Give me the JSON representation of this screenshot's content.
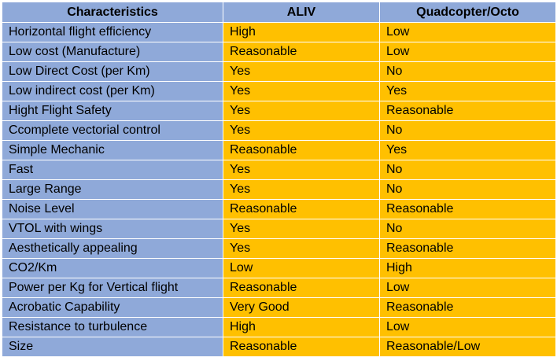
{
  "table": {
    "headers": [
      "Characteristics",
      "ALIV",
      "Quadcopter/Octo"
    ],
    "rows": [
      [
        "Horizontal flight efficiency",
        "High",
        "Low"
      ],
      [
        "Low cost (Manufacture)",
        "Reasonable",
        "Low"
      ],
      [
        "Low Direct Cost (per Km)",
        "Yes",
        "No"
      ],
      [
        "Low indirect cost (per Km)",
        "Yes",
        "Yes"
      ],
      [
        "Hight Flight Safety",
        "Yes",
        "Reasonable"
      ],
      [
        "Ccomplete vectorial control",
        "Yes",
        "No"
      ],
      [
        "Simple Mechanic",
        "Reasonable",
        "Yes"
      ],
      [
        "Fast",
        "Yes",
        "No"
      ],
      [
        "Large Range",
        "Yes",
        "No"
      ],
      [
        "Noise Level",
        "Reasonable",
        "Reasonable"
      ],
      [
        "VTOL with wings",
        "Yes",
        "No"
      ],
      [
        "Aesthetically appealing",
        "Yes",
        "Reasonable"
      ],
      [
        "CO2/Km",
        "Low",
        "High"
      ],
      [
        "Power per Kg for Vertical flight",
        "Reasonable",
        "Low"
      ],
      [
        "Acrobatic Capability",
        "Very Good",
        "Reasonable"
      ],
      [
        "Resistance to turbulence",
        "High",
        "Low"
      ],
      [
        "Size",
        "Reasonable",
        "Reasonable/Low"
      ]
    ]
  },
  "colors": {
    "header_bg": "#8fa9d9",
    "characteristic_bg": "#8fa9d9",
    "value_bg": "#ffc000"
  }
}
